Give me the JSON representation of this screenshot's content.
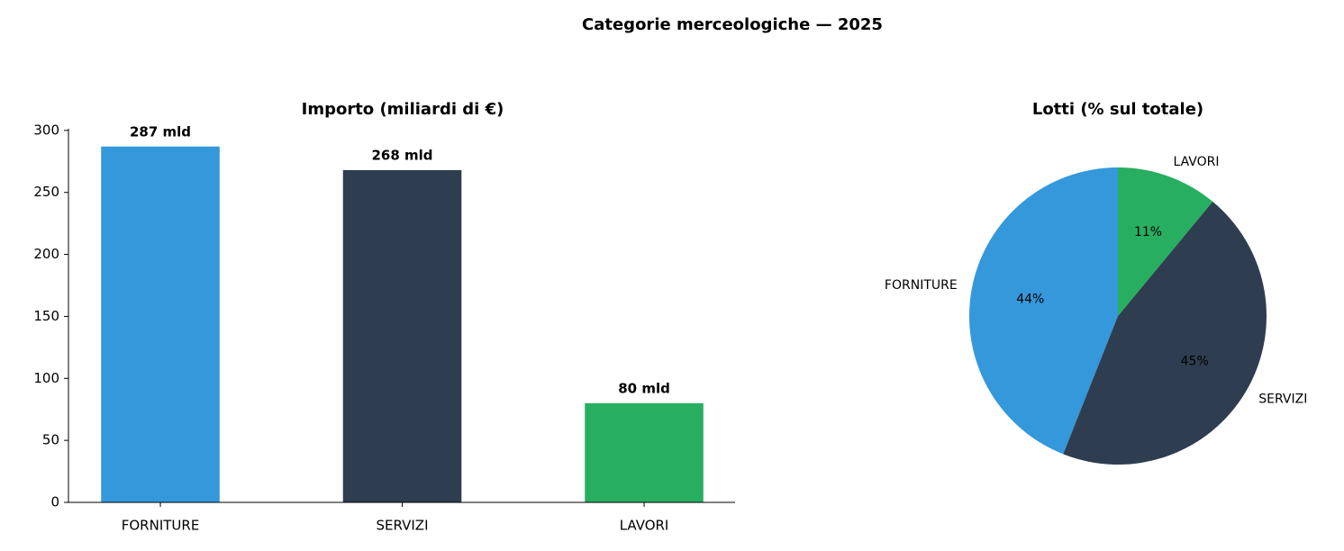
{
  "title": "Categorie merceologiche — 2025",
  "chart_data": [
    {
      "type": "bar",
      "title": "Importo (miliardi di €)",
      "categories": [
        "FORNITURE",
        "SERVIZI",
        "LAVORI"
      ],
      "values": [
        287,
        268,
        80
      ],
      "value_labels": [
        "287 mld",
        "268 mld",
        "80 mld"
      ],
      "colors": [
        "#3498db",
        "#2e3e50",
        "#27ae60"
      ],
      "ylim": [
        0,
        301.35
      ],
      "yticks": [
        0,
        50,
        100,
        150,
        200,
        250,
        300
      ]
    },
    {
      "type": "pie",
      "title": "Lotti (% sul totale)",
      "categories": [
        "FORNITURE",
        "SERVIZI",
        "LAVORI"
      ],
      "values": [
        44,
        45,
        11
      ],
      "value_labels": [
        "44%",
        "45%",
        "11%"
      ],
      "colors": [
        "#3498db",
        "#2e3e50",
        "#27ae60"
      ],
      "startangle": 90
    }
  ]
}
